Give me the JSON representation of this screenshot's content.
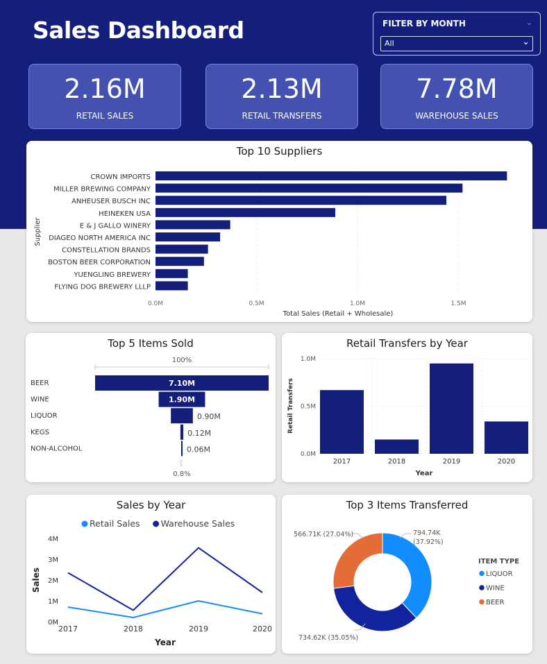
{
  "header": {
    "title": "Sales Dashboard"
  },
  "filter": {
    "label": "FILTER BY MONTH",
    "value": "All"
  },
  "kpis": [
    {
      "value": "2.16M",
      "label": "RETAIL SALES"
    },
    {
      "value": "2.13M",
      "label": "RETAIL TRANSFERS"
    },
    {
      "value": "7.78M",
      "label": "WAREHOUSE SALES"
    }
  ],
  "colors": {
    "header_bg": "#141f7c",
    "kpi_bg": "#4351b1",
    "navy": "#141f7c",
    "light_blue": "#118dff",
    "dark_blue": "#12239e",
    "orange": "#e66c37"
  },
  "chart_data": [
    {
      "id": "suppliers",
      "type": "bar",
      "orientation": "horizontal",
      "title": "Top 10 Suppliers",
      "xlabel": "Total Sales (Retail + Wholesale)",
      "ylabel": "Supplier",
      "xlim": [
        0,
        1.8
      ],
      "xticks": [
        "0.0M",
        "0.5M",
        "1.0M",
        "1.5M"
      ],
      "xtick_values": [
        0,
        0.5,
        1.0,
        1.5
      ],
      "categories": [
        "CROWN IMPORTS",
        "MILLER BREWING COMPANY",
        "ANHEUSER BUSCH INC",
        "HEINEKEN USA",
        "E & J GALLO WINERY",
        "DIAGEO NORTH AMERICA INC",
        "CONSTELLATION BRANDS",
        "BOSTON BEER CORPORATION",
        "YUENGLING BREWERY",
        "FLYING DOG BREWERY LLLP"
      ],
      "values": [
        1.74,
        1.52,
        1.44,
        0.89,
        0.37,
        0.32,
        0.26,
        0.24,
        0.16,
        0.16
      ]
    },
    {
      "id": "funnel",
      "type": "bar",
      "orientation": "funnel",
      "title": "Top 5 Items Sold",
      "top_label": "100%",
      "bottom_label": "0.8%",
      "categories": [
        "BEER",
        "WINE",
        "LIQUOR",
        "KEGS",
        "NON-ALCOHOL"
      ],
      "values": [
        7.1,
        1.9,
        0.9,
        0.12,
        0.06
      ],
      "labels": [
        "7.10M",
        "1.90M",
        "0.90M",
        "0.12M",
        "0.06M"
      ]
    },
    {
      "id": "transfers",
      "type": "bar",
      "title": "Retail Transfers by Year",
      "xlabel": "Year",
      "ylabel": "Retail Transfers",
      "ylim": [
        0,
        1.0
      ],
      "yticks": [
        "0.0M",
        "0.5M",
        "1.0M"
      ],
      "ytick_values": [
        0,
        0.5,
        1.0
      ],
      "categories": [
        "2017",
        "2018",
        "2019",
        "2020"
      ],
      "values": [
        0.67,
        0.15,
        0.95,
        0.34
      ]
    },
    {
      "id": "salesyear",
      "type": "line",
      "title": "Sales by Year",
      "xlabel": "Year",
      "ylabel": "Sales",
      "ylim": [
        0,
        4
      ],
      "yticks": [
        "0M",
        "1M",
        "2M",
        "3M",
        "4M"
      ],
      "ytick_values": [
        0,
        1,
        2,
        3,
        4
      ],
      "categories": [
        "2017",
        "2018",
        "2019",
        "2020"
      ],
      "series": [
        {
          "name": "Retail Sales",
          "color": "#118dff",
          "values": [
            0.7,
            0.2,
            1.0,
            0.38
          ]
        },
        {
          "name": "Warehouse Sales",
          "color": "#12239e",
          "values": [
            2.35,
            0.55,
            3.55,
            1.4
          ]
        }
      ]
    },
    {
      "id": "donut",
      "type": "pie",
      "title": "Top 3 Items Transferred",
      "legend_title": "ITEM TYPE",
      "categories": [
        "LIQUOR",
        "WINE",
        "BEER"
      ],
      "values": [
        794.74,
        734.62,
        566.71
      ],
      "colors": [
        "#118dff",
        "#12239e",
        "#e66c37"
      ],
      "label_lines": [
        [
          "794.74K",
          "(37.92%)"
        ],
        [
          "734.62K (35.05%)"
        ],
        [
          "566.71K (27.04%)"
        ]
      ]
    }
  ]
}
